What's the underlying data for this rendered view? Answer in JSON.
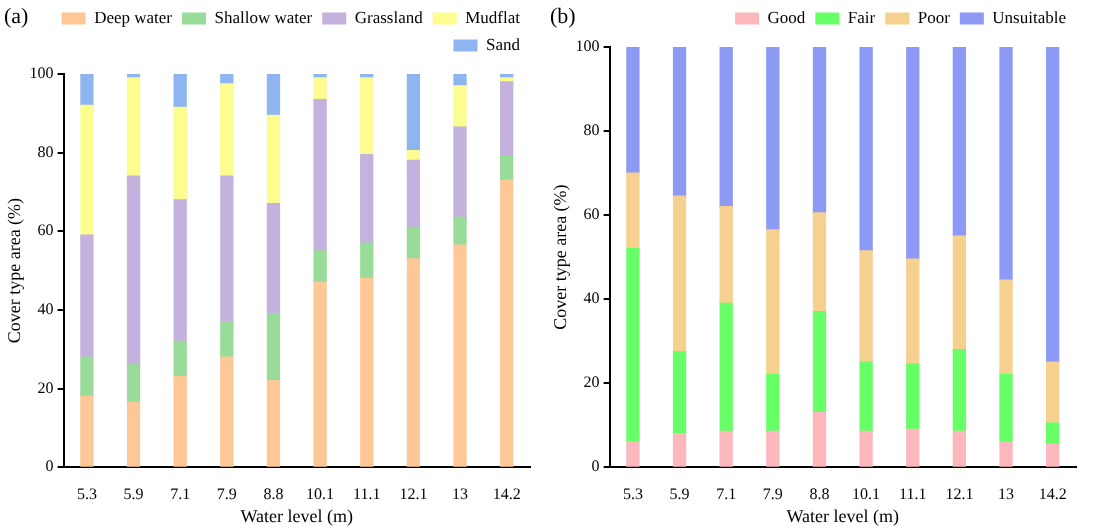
{
  "chart_data": [
    {
      "type": "bar",
      "title": "(a)",
      "xlabel": "Water level (m)",
      "ylabel": "Cover type area (%)",
      "stacked": true,
      "legend": "top",
      "grid": false,
      "categories": [
        "5.3",
        "5.9",
        "7.1",
        "7.9",
        "8.8",
        "10.1",
        "11.1",
        "12.1",
        "13",
        "14.2"
      ],
      "ylim": [
        0,
        100
      ],
      "yticks": [
        0,
        20,
        40,
        60,
        80,
        100
      ],
      "series": [
        {
          "name": "Deep water",
          "color": "#fdc896",
          "values": [
            18,
            16.5,
            23,
            28,
            22,
            47,
            48,
            53,
            56.5,
            73
          ]
        },
        {
          "name": "Shallow water",
          "color": "#99dc99",
          "values": [
            10,
            9.5,
            9,
            9,
            17,
            8,
            9,
            8,
            7,
            6
          ]
        },
        {
          "name": "Grassland",
          "color": "#c3b1de",
          "values": [
            31,
            48,
            36,
            37,
            28,
            38.5,
            22.5,
            17,
            23,
            19
          ]
        },
        {
          "name": "Mudflat",
          "color": "#fcfc8f",
          "values": [
            33,
            25,
            23.5,
            23.5,
            22.5,
            5.5,
            19.5,
            2.5,
            10.5,
            1
          ]
        },
        {
          "name": "Sand",
          "color": "#8fb5f0",
          "values": [
            8,
            1,
            8.5,
            2.5,
            10.5,
            1,
            1,
            19.5,
            3,
            1
          ]
        }
      ]
    },
    {
      "type": "bar",
      "title": "(b)",
      "xlabel": "Water level (m)",
      "ylabel": "Cover type area (%)",
      "stacked": true,
      "legend": "top",
      "grid": false,
      "categories": [
        "5.3",
        "5.9",
        "7.1",
        "7.9",
        "8.8",
        "10.1",
        "11.1",
        "12.1",
        "13",
        "14.2"
      ],
      "ylim": [
        0,
        100
      ],
      "yticks": [
        0,
        20,
        40,
        60,
        80,
        100
      ],
      "series": [
        {
          "name": "Good",
          "color": "#fdb8bd",
          "values": [
            6,
            8,
            8.5,
            8.5,
            13,
            8.5,
            9,
            8.5,
            6,
            5.5
          ]
        },
        {
          "name": "Fair",
          "color": "#66ff66",
          "values": [
            46,
            19.5,
            30.5,
            13.5,
            24,
            16.5,
            15.5,
            19.5,
            16,
            5
          ]
        },
        {
          "name": "Poor",
          "color": "#f5d08e",
          "values": [
            18,
            37,
            23,
            34.5,
            23.5,
            26.5,
            25,
            27,
            22.5,
            14.5
          ]
        },
        {
          "name": "Unsuitable",
          "color": "#8c99f5",
          "values": [
            30,
            35.5,
            38,
            43.5,
            39.5,
            48.5,
            50.5,
            45,
            55.5,
            75
          ]
        }
      ]
    }
  ]
}
